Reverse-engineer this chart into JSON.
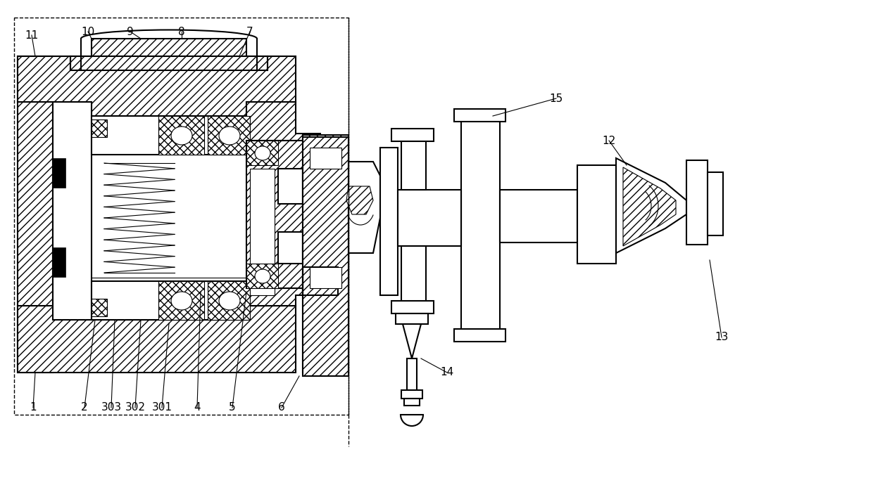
{
  "bg_color": "#ffffff",
  "lw_main": 1.5,
  "lw_thin": 0.8,
  "lw_dash": 1.0,
  "fig_width": 12.4,
  "fig_height": 6.9,
  "label_font": 11
}
